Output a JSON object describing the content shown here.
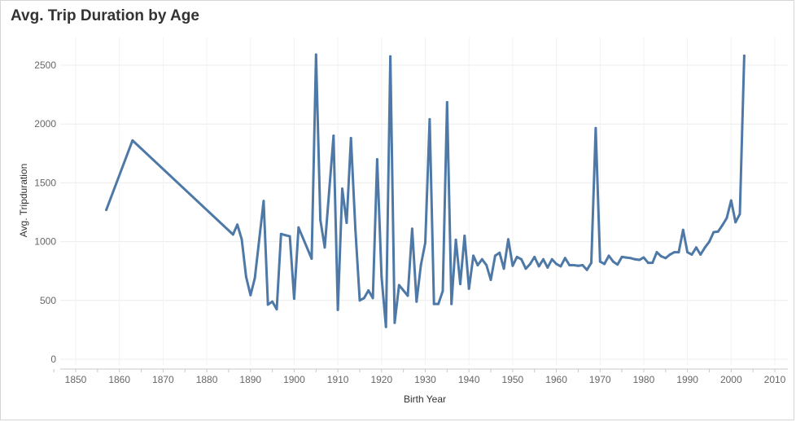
{
  "header": {
    "title": "Avg. Trip Duration by Age"
  },
  "chart_data": {
    "type": "line",
    "title": "Avg. Trip Duration by Age",
    "xlabel": "Birth Year",
    "ylabel": "Avg. Tripduration",
    "xlim": [
      1845,
      2012
    ],
    "ylim": [
      0,
      2650
    ],
    "xticks": [
      1850,
      1860,
      1870,
      1880,
      1890,
      1900,
      1910,
      1920,
      1930,
      1940,
      1950,
      1960,
      1970,
      1980,
      1990,
      2000,
      2010
    ],
    "yticks": [
      0,
      500,
      1000,
      1500,
      2000,
      2500
    ],
    "grid": true,
    "line_color": "#4e79a7",
    "series": [
      {
        "x": [
          1857,
          1863,
          1886,
          1887,
          1888,
          1889,
          1890,
          1891,
          1893,
          1894,
          1895,
          1896,
          1897,
          1898,
          1899,
          1900,
          1901,
          1904,
          1905,
          1906,
          1907,
          1909,
          1910,
          1911,
          1912,
          1913,
          1914,
          1915,
          1916,
          1917,
          1918,
          1919,
          1920,
          1921,
          1922,
          1923,
          1924,
          1926,
          1927,
          1928,
          1929,
          1930,
          1931,
          1932,
          1933,
          1934,
          1935,
          1936,
          1937,
          1938,
          1939,
          1940,
          1941,
          1942,
          1943,
          1944,
          1945,
          1946,
          1947,
          1948,
          1949,
          1950,
          1951,
          1952,
          1953,
          1954,
          1955,
          1956,
          1957,
          1958,
          1959,
          1960,
          1961,
          1962,
          1963,
          1964,
          1965,
          1966,
          1967,
          1968,
          1969,
          1970,
          1971,
          1972,
          1973,
          1974,
          1975,
          1976,
          1977,
          1978,
          1979,
          1980,
          1981,
          1982,
          1983,
          1984,
          1985,
          1986,
          1987,
          1988,
          1989,
          1990,
          1991,
          1992,
          1993,
          1994,
          1995,
          1996,
          1997,
          1998,
          1999,
          2000,
          2001,
          2002,
          2003
        ],
        "y": [
          1270,
          1860,
          1060,
          1145,
          1020,
          700,
          545,
          690,
          1345,
          465,
          490,
          425,
          1065,
          1055,
          1045,
          515,
          1120,
          855,
          2590,
          1185,
          950,
          1900,
          420,
          1450,
          1160,
          1880,
          1110,
          500,
          520,
          585,
          520,
          1700,
          700,
          275,
          2575,
          310,
          630,
          540,
          1110,
          490,
          800,
          990,
          2040,
          470,
          470,
          580,
          2185,
          470,
          1015,
          640,
          1050,
          600,
          880,
          800,
          850,
          800,
          675,
          880,
          905,
          770,
          1020,
          795,
          870,
          850,
          770,
          810,
          870,
          790,
          850,
          780,
          850,
          810,
          790,
          860,
          800,
          800,
          795,
          800,
          760,
          820,
          1965,
          830,
          810,
          880,
          830,
          805,
          870,
          865,
          860,
          850,
          845,
          865,
          820,
          820,
          910,
          875,
          860,
          890,
          910,
          910,
          1100,
          910,
          890,
          950,
          890,
          950,
          1000,
          1080,
          1085,
          1140,
          1200,
          1350,
          1165,
          1235,
          2580
        ]
      }
    ]
  }
}
